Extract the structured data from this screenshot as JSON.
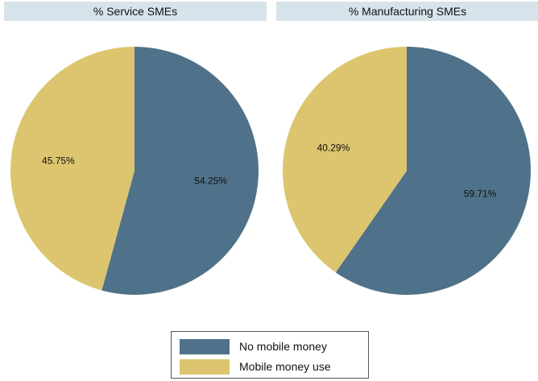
{
  "chart_data": [
    {
      "type": "pie",
      "title": "% Service SMEs",
      "categories": [
        "No mobile money",
        "Mobile money use"
      ],
      "values": [
        54.25,
        45.75
      ],
      "labels": [
        "54.25%",
        "45.75%"
      ]
    },
    {
      "type": "pie",
      "title": "% Manufacturing SMEs",
      "categories": [
        "No mobile money",
        "Mobile money use"
      ],
      "values": [
        59.71,
        40.29
      ],
      "labels": [
        "59.71%",
        "40.29%"
      ]
    }
  ],
  "legend": {
    "placement": "bottom",
    "items": [
      {
        "label": "No mobile money",
        "color": "#4f728a"
      },
      {
        "label": "Mobile money use",
        "color": "#dcc56e"
      }
    ]
  },
  "colors": {
    "header_bg": "#d7e3ea"
  }
}
